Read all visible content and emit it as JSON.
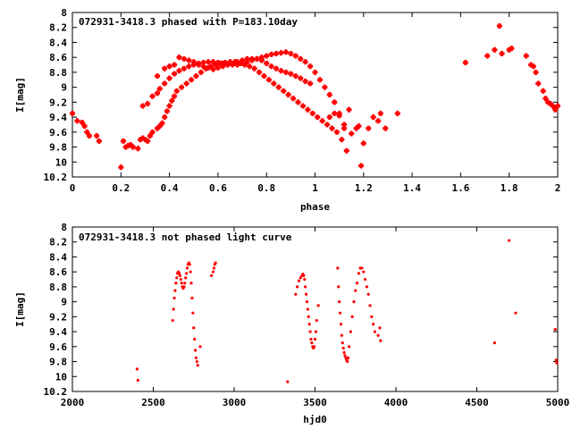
{
  "chart_data": [
    {
      "type": "scatter",
      "title": "072931-3418.3 phased with P=183.10day",
      "xlabel": "phase",
      "ylabel": "I[mag]",
      "xlim": [
        0,
        2
      ],
      "ylim": [
        8,
        10.2
      ],
      "y_inverted": true,
      "xticks": [
        0,
        0.2,
        0.4,
        0.6,
        0.8,
        1,
        1.2,
        1.4,
        1.6,
        1.8,
        2
      ],
      "yticks": [
        8,
        8.2,
        8.4,
        8.6,
        8.8,
        9,
        9.2,
        9.4,
        9.6,
        9.8,
        10,
        10.2
      ],
      "marker": "cross",
      "color": "#ff0000",
      "points": [
        [
          0.0,
          9.35
        ],
        [
          0.02,
          9.45
        ],
        [
          0.04,
          9.47
        ],
        [
          0.05,
          9.52
        ],
        [
          0.06,
          9.6
        ],
        [
          0.07,
          9.65
        ],
        [
          0.1,
          9.65
        ],
        [
          0.11,
          9.72
        ],
        [
          0.2,
          10.07
        ],
        [
          0.21,
          9.72
        ],
        [
          0.22,
          9.8
        ],
        [
          0.23,
          9.78
        ],
        [
          0.24,
          9.77
        ],
        [
          0.25,
          9.8
        ],
        [
          0.27,
          9.82
        ],
        [
          0.28,
          9.7
        ],
        [
          0.29,
          9.68
        ],
        [
          0.3,
          9.7
        ],
        [
          0.31,
          9.72
        ],
        [
          0.32,
          9.65
        ],
        [
          0.33,
          9.6
        ],
        [
          0.35,
          9.55
        ],
        [
          0.36,
          9.52
        ],
        [
          0.37,
          9.48
        ],
        [
          0.38,
          9.4
        ],
        [
          0.39,
          9.32
        ],
        [
          0.4,
          9.25
        ],
        [
          0.41,
          9.18
        ],
        [
          0.42,
          9.12
        ],
        [
          0.43,
          9.05
        ],
        [
          0.45,
          9.0
        ],
        [
          0.47,
          8.95
        ],
        [
          0.49,
          8.9
        ],
        [
          0.51,
          8.85
        ],
        [
          0.53,
          8.8
        ],
        [
          0.55,
          8.75
        ],
        [
          0.57,
          8.72
        ],
        [
          0.59,
          8.7
        ],
        [
          0.61,
          8.68
        ],
        [
          0.63,
          8.67
        ],
        [
          0.65,
          8.66
        ],
        [
          0.67,
          8.66
        ],
        [
          0.69,
          8.68
        ],
        [
          0.71,
          8.7
        ],
        [
          0.73,
          8.72
        ],
        [
          0.75,
          8.75
        ],
        [
          0.77,
          8.8
        ],
        [
          0.79,
          8.85
        ],
        [
          0.81,
          8.9
        ],
        [
          0.83,
          8.95
        ],
        [
          0.85,
          9.0
        ],
        [
          0.87,
          9.05
        ],
        [
          0.89,
          9.1
        ],
        [
          0.91,
          9.15
        ],
        [
          0.93,
          9.2
        ],
        [
          0.95,
          9.25
        ],
        [
          0.97,
          9.3
        ],
        [
          0.99,
          9.35
        ],
        [
          1.01,
          9.4
        ],
        [
          1.03,
          9.45
        ],
        [
          1.05,
          9.5
        ],
        [
          1.07,
          9.55
        ],
        [
          1.09,
          9.6
        ],
        [
          1.11,
          9.7
        ],
        [
          1.13,
          9.85
        ],
        [
          0.29,
          9.25
        ],
        [
          0.31,
          9.22
        ],
        [
          0.33,
          9.12
        ],
        [
          0.35,
          9.08
        ],
        [
          0.36,
          9.02
        ],
        [
          0.38,
          8.95
        ],
        [
          0.4,
          8.88
        ],
        [
          0.42,
          8.82
        ],
        [
          0.44,
          8.78
        ],
        [
          0.46,
          8.75
        ],
        [
          0.48,
          8.72
        ],
        [
          0.5,
          8.7
        ],
        [
          0.52,
          8.68
        ],
        [
          0.54,
          8.67
        ],
        [
          0.56,
          8.66
        ],
        [
          0.58,
          8.66
        ],
        [
          0.6,
          8.67
        ],
        [
          0.62,
          8.68
        ],
        [
          0.64,
          8.69
        ],
        [
          0.66,
          8.7
        ],
        [
          0.68,
          8.7
        ],
        [
          0.7,
          8.68
        ],
        [
          0.72,
          8.66
        ],
        [
          0.74,
          8.64
        ],
        [
          0.76,
          8.62
        ],
        [
          0.78,
          8.6
        ],
        [
          0.8,
          8.58
        ],
        [
          0.82,
          8.56
        ],
        [
          0.84,
          8.55
        ],
        [
          0.86,
          8.54
        ],
        [
          0.88,
          8.53
        ],
        [
          0.9,
          8.55
        ],
        [
          0.92,
          8.58
        ],
        [
          0.94,
          8.62
        ],
        [
          0.96,
          8.66
        ],
        [
          0.98,
          8.72
        ],
        [
          1.0,
          8.8
        ],
        [
          1.02,
          8.9
        ],
        [
          1.04,
          9.0
        ],
        [
          1.06,
          9.1
        ],
        [
          1.08,
          9.2
        ],
        [
          1.1,
          9.35
        ],
        [
          1.12,
          9.5
        ],
        [
          0.44,
          8.6
        ],
        [
          0.46,
          8.62
        ],
        [
          0.48,
          8.64
        ],
        [
          0.5,
          8.66
        ],
        [
          0.52,
          8.7
        ],
        [
          0.54,
          8.72
        ],
        [
          0.56,
          8.74
        ],
        [
          0.58,
          8.76
        ],
        [
          0.6,
          8.74
        ],
        [
          0.62,
          8.72
        ],
        [
          0.64,
          8.7
        ],
        [
          0.66,
          8.68
        ],
        [
          0.68,
          8.66
        ],
        [
          0.7,
          8.64
        ],
        [
          0.72,
          8.62
        ],
        [
          0.74,
          8.62
        ],
        [
          0.76,
          8.62
        ],
        [
          0.78,
          8.64
        ],
        [
          0.8,
          8.68
        ],
        [
          0.82,
          8.72
        ],
        [
          0.84,
          8.75
        ],
        [
          0.86,
          8.78
        ],
        [
          0.88,
          8.8
        ],
        [
          0.9,
          8.82
        ],
        [
          0.92,
          8.85
        ],
        [
          0.94,
          8.88
        ],
        [
          0.96,
          8.92
        ],
        [
          0.98,
          8.95
        ],
        [
          0.38,
          8.75
        ],
        [
          0.4,
          8.72
        ],
        [
          0.42,
          8.7
        ],
        [
          0.35,
          8.85
        ],
        [
          1.06,
          9.4
        ],
        [
          1.08,
          9.35
        ],
        [
          1.1,
          9.38
        ],
        [
          1.12,
          9.55
        ],
        [
          1.14,
          9.3
        ],
        [
          1.15,
          9.62
        ],
        [
          1.17,
          9.55
        ],
        [
          1.18,
          9.52
        ],
        [
          1.19,
          10.05
        ],
        [
          1.2,
          9.75
        ],
        [
          1.22,
          9.55
        ],
        [
          1.24,
          9.4
        ],
        [
          1.26,
          9.45
        ],
        [
          1.27,
          9.35
        ],
        [
          1.29,
          9.55
        ],
        [
          1.34,
          9.35
        ],
        [
          1.62,
          8.67
        ],
        [
          1.71,
          8.58
        ],
        [
          1.74,
          8.5
        ],
        [
          1.76,
          8.18
        ],
        [
          1.77,
          8.55
        ],
        [
          1.8,
          8.5
        ],
        [
          1.81,
          8.48
        ],
        [
          1.87,
          8.58
        ],
        [
          1.89,
          8.7
        ],
        [
          1.9,
          8.72
        ],
        [
          1.91,
          8.8
        ],
        [
          1.92,
          8.95
        ],
        [
          1.94,
          9.05
        ],
        [
          1.95,
          9.15
        ],
        [
          1.96,
          9.2
        ],
        [
          1.97,
          9.22
        ],
        [
          1.98,
          9.25
        ],
        [
          1.99,
          9.3
        ],
        [
          2.0,
          9.25
        ]
      ]
    },
    {
      "type": "scatter",
      "title": "072931-3418.3 not phased light curve",
      "xlabel": "hjd0",
      "ylabel": "I[mag]",
      "xlim": [
        2000,
        5000
      ],
      "ylim": [
        8,
        10.2
      ],
      "y_inverted": true,
      "xticks": [
        2000,
        2500,
        3000,
        3500,
        4000,
        4500,
        5000
      ],
      "yticks": [
        8,
        8.2,
        8.4,
        8.6,
        8.8,
        9,
        9.2,
        9.4,
        9.6,
        9.8,
        10,
        10.2
      ],
      "marker": "dot",
      "color": "#ff0000",
      "points": [
        [
          2400,
          9.9
        ],
        [
          2405,
          10.05
        ],
        [
          2620,
          9.25
        ],
        [
          2625,
          9.1
        ],
        [
          2630,
          8.95
        ],
        [
          2635,
          8.85
        ],
        [
          2640,
          8.75
        ],
        [
          2645,
          8.68
        ],
        [
          2650,
          8.62
        ],
        [
          2655,
          8.6
        ],
        [
          2660,
          8.62
        ],
        [
          2665,
          8.65
        ],
        [
          2670,
          8.7
        ],
        [
          2675,
          8.75
        ],
        [
          2680,
          8.8
        ],
        [
          2685,
          8.82
        ],
        [
          2690,
          8.8
        ],
        [
          2695,
          8.75
        ],
        [
          2700,
          8.68
        ],
        [
          2705,
          8.62
        ],
        [
          2710,
          8.55
        ],
        [
          2715,
          8.5
        ],
        [
          2720,
          8.48
        ],
        [
          2725,
          8.5
        ],
        [
          2730,
          8.6
        ],
        [
          2735,
          8.75
        ],
        [
          2740,
          8.95
        ],
        [
          2745,
          9.15
        ],
        [
          2750,
          9.35
        ],
        [
          2755,
          9.5
        ],
        [
          2760,
          9.65
        ],
        [
          2765,
          9.75
        ],
        [
          2770,
          9.8
        ],
        [
          2775,
          9.85
        ],
        [
          2790,
          9.6
        ],
        [
          2860,
          8.65
        ],
        [
          2870,
          8.6
        ],
        [
          2875,
          8.55
        ],
        [
          2880,
          8.5
        ],
        [
          2885,
          8.48
        ],
        [
          3330,
          10.07
        ],
        [
          3380,
          8.9
        ],
        [
          3390,
          8.8
        ],
        [
          3400,
          8.72
        ],
        [
          3410,
          8.68
        ],
        [
          3420,
          8.65
        ],
        [
          3425,
          8.63
        ],
        [
          3430,
          8.65
        ],
        [
          3435,
          8.7
        ],
        [
          3440,
          8.8
        ],
        [
          3445,
          8.9
        ],
        [
          3450,
          9.0
        ],
        [
          3455,
          9.1
        ],
        [
          3460,
          9.2
        ],
        [
          3465,
          9.3
        ],
        [
          3470,
          9.4
        ],
        [
          3475,
          9.5
        ],
        [
          3480,
          9.55
        ],
        [
          3485,
          9.6
        ],
        [
          3490,
          9.62
        ],
        [
          3495,
          9.6
        ],
        [
          3500,
          9.5
        ],
        [
          3505,
          9.4
        ],
        [
          3510,
          9.25
        ],
        [
          3520,
          9.05
        ],
        [
          3640,
          8.55
        ],
        [
          3645,
          8.8
        ],
        [
          3650,
          9.0
        ],
        [
          3655,
          9.15
        ],
        [
          3660,
          9.3
        ],
        [
          3665,
          9.45
        ],
        [
          3670,
          9.55
        ],
        [
          3675,
          9.62
        ],
        [
          3680,
          9.68
        ],
        [
          3685,
          9.72
        ],
        [
          3690,
          9.75
        ],
        [
          3695,
          9.78
        ],
        [
          3700,
          9.8
        ],
        [
          3705,
          9.75
        ],
        [
          3710,
          9.6
        ],
        [
          3720,
          9.4
        ],
        [
          3730,
          9.2
        ],
        [
          3740,
          9.0
        ],
        [
          3750,
          8.85
        ],
        [
          3760,
          8.75
        ],
        [
          3770,
          8.62
        ],
        [
          3780,
          8.55
        ],
        [
          3790,
          8.55
        ],
        [
          3800,
          8.6
        ],
        [
          3810,
          8.7
        ],
        [
          3820,
          8.8
        ],
        [
          3830,
          8.9
        ],
        [
          3840,
          9.05
        ],
        [
          3850,
          9.2
        ],
        [
          3860,
          9.3
        ],
        [
          3870,
          9.4
        ],
        [
          3890,
          9.45
        ],
        [
          3900,
          9.35
        ],
        [
          3905,
          9.52
        ],
        [
          4610,
          9.55
        ],
        [
          4700,
          8.18
        ],
        [
          4740,
          9.15
        ],
        [
          4985,
          9.37
        ],
        [
          4990,
          9.78
        ],
        [
          4995,
          9.82
        ]
      ]
    }
  ]
}
